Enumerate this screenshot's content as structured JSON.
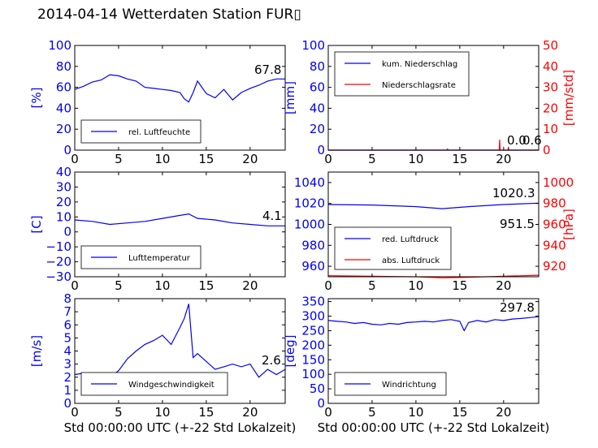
{
  "title": "2014-04-14 Wetterdaten Station FUR",
  "title_glyph": "▯",
  "colors": {
    "primary": "#0000ff",
    "secondary": "#ff0000",
    "axis": "#000000"
  },
  "chart_data": [
    {
      "type": "line",
      "ylabel": "[%]",
      "xlim": [
        0,
        24
      ],
      "ylim": [
        0,
        100
      ],
      "xticks": [
        "0",
        "5",
        "10",
        "15",
        "20"
      ],
      "yticks": [
        "0",
        "20",
        "40",
        "60",
        "80",
        "100"
      ],
      "legend": [
        "rel. Luftfeuchte"
      ],
      "legend_position": "lower-left",
      "annotation": "67.8",
      "series": [
        {
          "name": "rel. Luftfeuchte",
          "color": "#0000ff",
          "x": [
            0,
            1,
            2,
            3,
            4,
            5,
            6,
            7,
            8,
            9,
            10,
            11,
            12,
            12.5,
            13,
            13.5,
            14,
            14.5,
            15,
            16,
            17,
            18,
            19,
            20,
            21,
            22,
            23,
            24
          ],
          "y": [
            58,
            61,
            65,
            67,
            72,
            71,
            68,
            66,
            60,
            59,
            58,
            57,
            55,
            49,
            46,
            55,
            66,
            60,
            54,
            50,
            58,
            48,
            55,
            59,
            62,
            66,
            68,
            68
          ]
        }
      ]
    },
    {
      "type": "line",
      "ylabel": "[mm]",
      "ylabel_right": "[mm/std]",
      "xlim": [
        0,
        24
      ],
      "ylim": [
        0,
        100
      ],
      "ylim_right": [
        0,
        50
      ],
      "xticks": [
        "0",
        "5",
        "10",
        "15",
        "20"
      ],
      "yticks": [
        "0",
        "20",
        "40",
        "60",
        "80",
        "100"
      ],
      "yticks_right": [
        "0",
        "10",
        "20",
        "30",
        "40",
        "50"
      ],
      "legend": [
        "kum. Niederschlag",
        "Niederschlagsrate"
      ],
      "legend_position": "upper-left",
      "annotation": "0.0",
      "annotation2": "0.6",
      "series": [
        {
          "name": "kum. Niederschlag",
          "color": "#0000ff",
          "x": [
            0,
            24
          ],
          "y": [
            0,
            0
          ]
        },
        {
          "name": "Niederschlagsrate",
          "color": "#ff0000",
          "x": [
            0,
            13.5,
            13.6,
            13.7,
            19.5,
            19.55,
            19.6,
            20.5,
            20.55,
            20.6,
            24
          ],
          "y": [
            0,
            0,
            0.5,
            0,
            0,
            5,
            0,
            0,
            1.5,
            0,
            0
          ]
        }
      ]
    },
    {
      "type": "line",
      "ylabel": "[C]",
      "xlim": [
        0,
        24
      ],
      "ylim": [
        -30,
        40
      ],
      "xticks": [
        "0",
        "5",
        "10",
        "15",
        "20"
      ],
      "yticks": [
        "−30",
        "−20",
        "−10",
        "0",
        "10",
        "20",
        "30",
        "40"
      ],
      "legend": [
        "Lufttemperatur"
      ],
      "legend_position": "lower-left",
      "annotation": "4.1",
      "series": [
        {
          "name": "Lufttemperatur",
          "color": "#0000ff",
          "x": [
            0,
            2,
            4,
            6,
            8,
            10,
            12,
            13,
            14,
            16,
            18,
            20,
            22,
            24
          ],
          "y": [
            8,
            7,
            5,
            6,
            7,
            9,
            11,
            12,
            9,
            8,
            6,
            5,
            4,
            4
          ]
        }
      ]
    },
    {
      "type": "line",
      "ylabel_right": "[hPa]",
      "xlim": [
        0,
        24
      ],
      "ylim": [
        950,
        1050
      ],
      "ylim_right": [
        910,
        1010
      ],
      "xticks": [
        "0",
        "5",
        "10",
        "15",
        "20"
      ],
      "yticks": [
        "960",
        "980",
        "1000",
        "1020",
        "1040"
      ],
      "yticks_right": [
        "920",
        "940",
        "960",
        "980",
        "1000"
      ],
      "legend": [
        "red. Luftdruck",
        "abs. Luftdruck"
      ],
      "legend_position": "lower-left",
      "annotation": "1020.3",
      "annotation2": "951.5",
      "series": [
        {
          "name": "red. Luftdruck",
          "color": "#0000ff",
          "x": [
            0,
            5,
            10,
            13,
            16,
            20,
            24
          ],
          "y": [
            1019,
            1018.5,
            1017,
            1015,
            1017,
            1019,
            1020.3
          ]
        },
        {
          "name": "abs. Luftdruck",
          "color": "#ff0000",
          "x": [
            0,
            5,
            10,
            13,
            16,
            20,
            24
          ],
          "y": [
            951,
            950.5,
            950,
            949,
            949.5,
            950.5,
            951.5
          ]
        }
      ]
    },
    {
      "type": "line",
      "ylabel": "[m/s]",
      "xlabel": "Std 00:00:00 UTC (+-22 Std Lokalzeit)",
      "xlim": [
        0,
        24
      ],
      "ylim": [
        0,
        8
      ],
      "xticks": [
        "0",
        "5",
        "10",
        "15",
        "20"
      ],
      "yticks": [
        "0",
        "1",
        "2",
        "3",
        "4",
        "5",
        "6",
        "7",
        "8"
      ],
      "legend": [
        "Windgeschwindigkeit"
      ],
      "legend_position": "lower-left",
      "annotation": "2.6",
      "series": [
        {
          "name": "Windgeschwindigkeit",
          "color": "#0000ff",
          "x": [
            0,
            1,
            2,
            3,
            4,
            5,
            6,
            7,
            8,
            9,
            10,
            11,
            12,
            12.5,
            13,
            13.5,
            14,
            15,
            16,
            17,
            18,
            19,
            20,
            21,
            22,
            23,
            24
          ],
          "y": [
            2.2,
            2.3,
            2.2,
            1.8,
            2.0,
            2.5,
            3.4,
            4.0,
            4.5,
            4.8,
            5.2,
            4.5,
            5.8,
            6.5,
            7.6,
            3.5,
            3.8,
            3.2,
            2.6,
            2.8,
            3.0,
            2.8,
            3.0,
            2.0,
            2.6,
            2.2,
            2.6
          ]
        }
      ]
    },
    {
      "type": "line",
      "ylabel": "[deg]",
      "xlabel": "Std 00:00:00 UTC (+-22 Std Lokalzeit)",
      "xlim": [
        0,
        24
      ],
      "ylim": [
        0,
        360
      ],
      "xticks": [
        "0",
        "5",
        "10",
        "15",
        "20"
      ],
      "yticks": [
        "0",
        "50",
        "100",
        "150",
        "200",
        "250",
        "300",
        "350"
      ],
      "legend": [
        "Windrichtung"
      ],
      "legend_position": "lower-left",
      "annotation": "297.8",
      "series": [
        {
          "name": "Windrichtung",
          "color": "#0000ff",
          "x": [
            0,
            1,
            2,
            3,
            4,
            5,
            6,
            7,
            8,
            9,
            10,
            11,
            12,
            13,
            14,
            15,
            15.5,
            16,
            17,
            18,
            19,
            20,
            21,
            22,
            23,
            24
          ],
          "y": [
            285,
            282,
            280,
            275,
            278,
            272,
            270,
            275,
            272,
            278,
            280,
            282,
            280,
            285,
            288,
            282,
            250,
            278,
            285,
            280,
            288,
            285,
            290,
            292,
            295,
            298
          ]
        }
      ]
    }
  ]
}
